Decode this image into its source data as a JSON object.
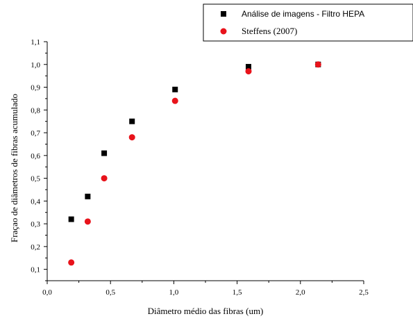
{
  "chart_data": {
    "type": "scatter",
    "xlabel": "Diâmetro médio das fibras (um)",
    "ylabel": "Fraçao de diâmetros de fibras acumulado",
    "xlim": [
      0.0,
      2.5
    ],
    "ylim": [
      0.05,
      1.1
    ],
    "xticks": [
      "0,0",
      "0,5",
      "1,0",
      "1,5",
      "2,0",
      "2,5"
    ],
    "xtick_values": [
      0.0,
      0.5,
      1.0,
      1.5,
      2.0,
      2.5
    ],
    "yticks": [
      "0,1",
      "0,2",
      "0,3",
      "0,4",
      "0,5",
      "0,6",
      "0,7",
      "0,8",
      "0,9",
      "1,0",
      "1,1"
    ],
    "ytick_values": [
      0.1,
      0.2,
      0.3,
      0.4,
      0.5,
      0.6,
      0.7,
      0.8,
      0.9,
      1.0,
      1.1
    ],
    "grid": false,
    "legend_position": "top-right",
    "series": [
      {
        "name": "Análise de imagens - Filtro HEPA",
        "marker": "square",
        "color": "#000000",
        "x": [
          0.19,
          0.32,
          0.45,
          0.67,
          1.01,
          1.59,
          2.14
        ],
        "y": [
          0.32,
          0.42,
          0.61,
          0.75,
          0.89,
          0.99,
          1.0
        ]
      },
      {
        "name": "Steffens (2007)",
        "marker": "circle",
        "color": "#e8131b",
        "x": [
          0.19,
          0.32,
          0.45,
          0.67,
          1.01,
          1.59,
          2.14
        ],
        "y": [
          0.13,
          0.31,
          0.5,
          0.68,
          0.84,
          0.97,
          1.0
        ]
      }
    ]
  }
}
